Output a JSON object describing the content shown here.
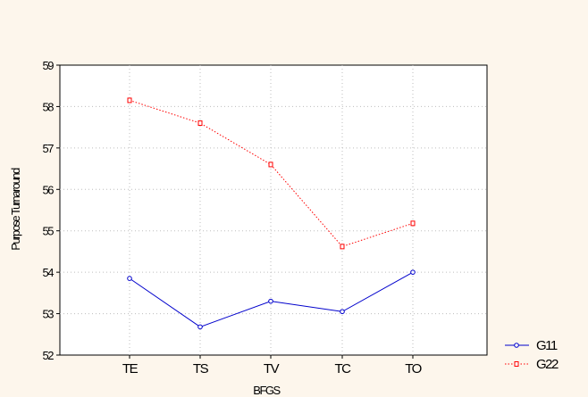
{
  "chart_data": {
    "type": "line",
    "title": "",
    "xlabel": "BFGS",
    "ylabel": "Purpose Turnaround",
    "categories": [
      "TE",
      "TS",
      "TV",
      "TC",
      "TO"
    ],
    "ylim": [
      52,
      59
    ],
    "yticks": [
      52,
      53,
      54,
      55,
      56,
      57,
      58,
      59
    ],
    "grid": true,
    "legend_position": "right",
    "series": [
      {
        "name": "G11",
        "values": [
          53.85,
          52.68,
          53.3,
          53.05,
          54.0
        ],
        "color": "#0000cc",
        "line_style": "solid",
        "marker": "circle"
      },
      {
        "name": "G22",
        "values": [
          58.15,
          57.6,
          56.6,
          54.62,
          55.18
        ],
        "color": "#ff0000",
        "line_style": "dotted",
        "marker": "square"
      }
    ]
  }
}
